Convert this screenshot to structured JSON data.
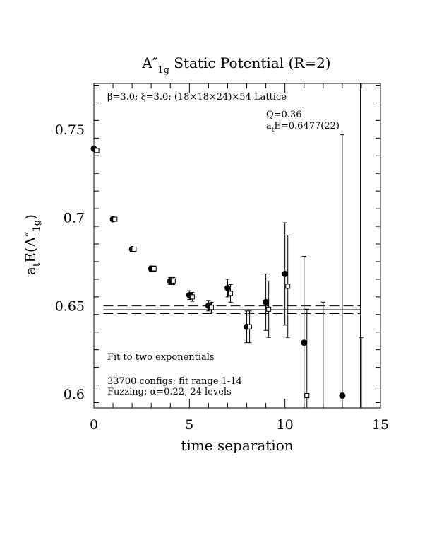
{
  "chart_data": {
    "type": "scatter",
    "title": "A″1g Static Potential (R=2)",
    "title_parts": {
      "main": "A″",
      "sub": "1g",
      "rest": " Static Potential (R=2)"
    },
    "xlabel": "time separation",
    "ylabel": "atE(A″1g)",
    "ylabel_parts": {
      "a": "a",
      "t": "t",
      "E": "E(A″",
      "sub": "1g",
      "close": ")"
    },
    "xlim": [
      0,
      15
    ],
    "ylim": [
      0.592,
      0.776
    ],
    "xticks": [
      0,
      5,
      10,
      15
    ],
    "xtick_labels": [
      "0",
      "5",
      "10",
      "15"
    ],
    "yticks": [
      0.6,
      0.65,
      0.7,
      0.75
    ],
    "ytick_labels": [
      "0.6",
      "0.65",
      "0.7",
      "0.75"
    ],
    "grid": false,
    "annotations": {
      "lattice": "β=3.0; ξ=3.0; (18×18×24)×54 Lattice",
      "q_value": "Q=0.36",
      "energy": "atE=0.6477(22)",
      "energy_parts": {
        "a": "a",
        "t": "t",
        "rest": "E=0.6477(22)"
      },
      "fit": "Fit to two exponentials",
      "configs": "33700 configs; fit range 1-14",
      "fuzzing": "Fuzzing: α=0.22, 24 levels"
    },
    "fit_band": {
      "center": 0.6477,
      "upper": 0.6499,
      "lower": 0.6455,
      "x_start": 0.5,
      "x_end": 14.0
    },
    "series": [
      {
        "marker": "filled-circle",
        "points": [
          {
            "x": 0,
            "y": 0.739,
            "err": 0.0008
          },
          {
            "x": 1,
            "y": 0.699,
            "err": 0.001
          },
          {
            "x": 2,
            "y": 0.682,
            "err": 0.0012
          },
          {
            "x": 3,
            "y": 0.671,
            "err": 0.0015
          },
          {
            "x": 4,
            "y": 0.664,
            "err": 0.002
          },
          {
            "x": 5,
            "y": 0.656,
            "err": 0.0025
          },
          {
            "x": 6,
            "y": 0.65,
            "err": 0.003
          },
          {
            "x": 7,
            "y": 0.66,
            "err": 0.005
          },
          {
            "x": 8,
            "y": 0.638,
            "err": 0.009
          },
          {
            "x": 9,
            "y": 0.652,
            "err": 0.016
          },
          {
            "x": 10,
            "y": 0.668,
            "err": 0.029
          },
          {
            "x": 11,
            "y": 0.629,
            "err": 0.049
          },
          {
            "x": 13,
            "y": 0.599,
            "err": 0.148
          }
        ]
      },
      {
        "marker": "open-square",
        "points": [
          {
            "x": 0.15,
            "y": 0.738,
            "err": 0.0008
          },
          {
            "x": 1.1,
            "y": 0.699,
            "err": 0.001
          },
          {
            "x": 2.1,
            "y": 0.682,
            "err": 0.0012
          },
          {
            "x": 3.15,
            "y": 0.671,
            "err": 0.0015
          },
          {
            "x": 4.15,
            "y": 0.664,
            "err": 0.002
          },
          {
            "x": 5.15,
            "y": 0.655,
            "err": 0.0025
          },
          {
            "x": 6.15,
            "y": 0.649,
            "err": 0.003
          },
          {
            "x": 7.15,
            "y": 0.657,
            "err": 0.005
          },
          {
            "x": 8.15,
            "y": 0.638,
            "err": 0.009
          },
          {
            "x": 9.15,
            "y": 0.648,
            "err": 0.016
          },
          {
            "x": 10.15,
            "y": 0.661,
            "err": 0.029
          },
          {
            "x": 11.15,
            "y": 0.599,
            "err": 0.049
          },
          {
            "x": 12.0,
            "y": 0.592,
            "err": 0.06
          },
          {
            "x": 14.0,
            "y": 0.592,
            "err": 0.04
          }
        ]
      }
    ],
    "tall_line": {
      "x": 13.95,
      "y_top": 0.776
    }
  }
}
